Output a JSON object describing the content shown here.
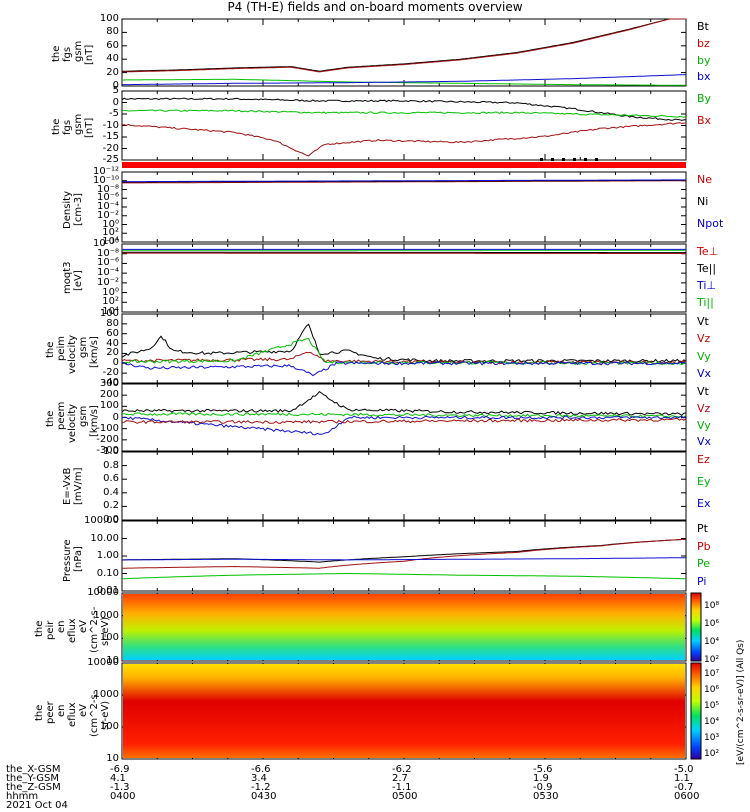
{
  "title": "P4 (TH-E) fields and on-board moments overview",
  "colors": {
    "black": "#000000",
    "red": "#a01010",
    "green": "#00c000",
    "blue": "#1010d0",
    "bar_red": "#ff0000",
    "grid": "#000000"
  },
  "chart_data": [
    {
      "id": "fgs_gsm_total",
      "type": "line",
      "ylabel": [
        "the",
        "fgs",
        "gsm",
        "[nT]"
      ],
      "ylim": [
        0,
        100
      ],
      "yticks": [
        "0",
        "20",
        "40",
        "60",
        "80",
        "100"
      ],
      "legend": [
        {
          "name": "Bt",
          "color": "#000000"
        },
        {
          "name": "bz",
          "color": "#cc0000"
        },
        {
          "name": "by",
          "color": "#00b000"
        },
        {
          "name": "bx",
          "color": "#0000cc"
        }
      ],
      "series": [
        {
          "name": "Bt",
          "color": "#000000",
          "points": [
            [
              0,
              22
            ],
            [
              0.1,
              24
            ],
            [
              0.2,
              27
            ],
            [
              0.3,
              29
            ],
            [
              0.35,
              22
            ],
            [
              0.4,
              28
            ],
            [
              0.5,
              33
            ],
            [
              0.6,
              40
            ],
            [
              0.7,
              50
            ],
            [
              0.8,
              65
            ],
            [
              0.9,
              85
            ],
            [
              0.97,
              100
            ]
          ]
        },
        {
          "name": "bz",
          "color": "#a01010",
          "points": [
            [
              0,
              21
            ],
            [
              0.1,
              23
            ],
            [
              0.2,
              26
            ],
            [
              0.3,
              28
            ],
            [
              0.35,
              21
            ],
            [
              0.4,
              27
            ],
            [
              0.5,
              32
            ],
            [
              0.6,
              39
            ],
            [
              0.7,
              49
            ],
            [
              0.8,
              64
            ],
            [
              0.9,
              84
            ],
            [
              0.97,
              100
            ]
          ]
        },
        {
          "name": "by",
          "color": "#00c000",
          "points": [
            [
              0,
              9
            ],
            [
              0.2,
              10
            ],
            [
              0.4,
              6
            ],
            [
              0.6,
              4
            ],
            [
              0.8,
              2
            ],
            [
              1,
              1
            ]
          ]
        },
        {
          "name": "bx",
          "color": "#1010d0",
          "points": [
            [
              0,
              2
            ],
            [
              0.2,
              4
            ],
            [
              0.4,
              5
            ],
            [
              0.6,
              7
            ],
            [
              0.8,
              11
            ],
            [
              1,
              17
            ]
          ]
        }
      ]
    },
    {
      "id": "fgs_gsm_delta",
      "type": "line",
      "ylabel": [
        "the",
        "fgs",
        "gsm",
        "[nT]"
      ],
      "ylim": [
        -28,
        7
      ],
      "yticks": [
        "-25",
        "-20",
        "-15",
        "-10",
        "-5",
        "0",
        "5"
      ],
      "legend": [
        {
          "name": "By",
          "color": "#00b000"
        },
        {
          "name": "Bx",
          "color": "#cc0000"
        }
      ],
      "series": [
        {
          "name": "bt",
          "color": "#000000",
          "points": [
            [
              0,
              3
            ],
            [
              0.2,
              3
            ],
            [
              0.35,
              2
            ],
            [
              0.5,
              2
            ],
            [
              0.7,
              1
            ],
            [
              0.8,
              -2
            ],
            [
              0.9,
              -6
            ],
            [
              1,
              -8
            ]
          ]
        },
        {
          "name": "By",
          "color": "#00c000",
          "points": [
            [
              0,
              -3
            ],
            [
              0.2,
              -3
            ],
            [
              0.35,
              -4
            ],
            [
              0.5,
              -4
            ],
            [
              0.7,
              -4
            ],
            [
              0.85,
              -5
            ],
            [
              1,
              -6
            ]
          ]
        },
        {
          "name": "Bx",
          "color": "#a01010",
          "points": [
            [
              0,
              -10
            ],
            [
              0.1,
              -12
            ],
            [
              0.2,
              -14
            ],
            [
              0.27,
              -18
            ],
            [
              0.33,
              -26
            ],
            [
              0.36,
              -20
            ],
            [
              0.45,
              -18
            ],
            [
              0.6,
              -19
            ],
            [
              0.75,
              -16
            ],
            [
              0.85,
              -12
            ],
            [
              1,
              -9
            ]
          ]
        }
      ]
    },
    {
      "id": "density",
      "type": "line",
      "ylabel": [
        "Density",
        "[cm-3]"
      ],
      "ylim": [
        -13,
        3
      ],
      "log": true,
      "yticks": [
        "10⁴",
        "10²",
        "10⁰",
        "10⁻²",
        "10⁻⁴",
        "10⁻⁶",
        "10⁻⁸",
        "10⁻¹⁰",
        "10⁻¹²"
      ],
      "legend": [
        {
          "name": "Ne",
          "color": "#cc0000"
        },
        {
          "name": "Ni",
          "color": "#000000"
        },
        {
          "name": "Npot",
          "color": "#0000cc"
        }
      ],
      "series": [
        {
          "name": "Ne",
          "color": "#a01010",
          "points": [
            [
              0,
              0.5
            ],
            [
              1,
              1.0
            ]
          ]
        },
        {
          "name": "Ni",
          "color": "#000000",
          "points": [
            [
              0,
              0.7
            ],
            [
              1,
              1.1
            ]
          ]
        },
        {
          "name": "Npot",
          "color": "#1010d0",
          "points": [
            [
              0,
              0.8
            ],
            [
              1,
              1.2
            ]
          ]
        }
      ]
    },
    {
      "id": "temperature",
      "type": "line",
      "ylabel": [
        "moqt3",
        "[eV]"
      ],
      "ylim": [
        -10,
        5
      ],
      "log": true,
      "yticks": [
        "10⁴",
        "10²",
        "10⁰",
        "10⁻²",
        "10⁻⁴",
        "10⁻⁶",
        "10⁻⁸",
        "10⁻¹⁰"
      ],
      "legend": [
        {
          "name": "Te⊥",
          "color": "#cc0000"
        },
        {
          "name": "Te||",
          "color": "#000000"
        },
        {
          "name": "Ti⊥",
          "color": "#0000cc"
        },
        {
          "name": "Ti||",
          "color": "#00b000"
        }
      ],
      "series": [
        {
          "name": "Te||",
          "color": "#000000",
          "points": [
            [
              0,
              3.2
            ],
            [
              1,
              3.1
            ]
          ]
        },
        {
          "name": "Te⊥",
          "color": "#a01010",
          "points": [
            [
              0,
              3.0
            ],
            [
              1,
              2.9
            ]
          ]
        },
        {
          "name": "Ti||",
          "color": "#00c000",
          "points": [
            [
              0,
              3.6
            ],
            [
              1,
              3.6
            ]
          ]
        },
        {
          "name": "Ti⊥",
          "color": "#1010d0",
          "points": [
            [
              0,
              3.8
            ],
            [
              1,
              3.8
            ]
          ]
        }
      ]
    },
    {
      "id": "peim_velocity",
      "type": "line",
      "ylabel": [
        "the",
        "peim",
        "velocity",
        "gsm",
        "[km/s]"
      ],
      "ylim": [
        -40,
        100
      ],
      "yticks": [
        "-40",
        "-20",
        "0",
        "20",
        "40",
        "60",
        "80",
        "100"
      ],
      "legend": [
        {
          "name": "Vt",
          "color": "#000000"
        },
        {
          "name": "Vz",
          "color": "#cc0000"
        },
        {
          "name": "Vy",
          "color": "#00b000"
        },
        {
          "name": "Vx",
          "color": "#0000cc"
        }
      ],
      "series": [
        {
          "name": "Vt",
          "color": "#000000",
          "points": [
            [
              0,
              15
            ],
            [
              0.05,
              30
            ],
            [
              0.07,
              55
            ],
            [
              0.09,
              25
            ],
            [
              0.15,
              20
            ],
            [
              0.3,
              25
            ],
            [
              0.33,
              80
            ],
            [
              0.35,
              20
            ],
            [
              0.4,
              25
            ],
            [
              0.45,
              10
            ],
            [
              0.55,
              5
            ],
            [
              0.7,
              5
            ],
            [
              1,
              5
            ]
          ]
        },
        {
          "name": "Vz",
          "color": "#a01010",
          "points": [
            [
              0,
              5
            ],
            [
              0.3,
              8
            ],
            [
              0.33,
              25
            ],
            [
              0.36,
              5
            ],
            [
              0.6,
              2
            ],
            [
              1,
              2
            ]
          ]
        },
        {
          "name": "Vy",
          "color": "#00c000",
          "points": [
            [
              0,
              3
            ],
            [
              0.2,
              5
            ],
            [
              0.33,
              50
            ],
            [
              0.36,
              2
            ],
            [
              1,
              0
            ]
          ]
        },
        {
          "name": "Vx",
          "color": "#1010d0",
          "points": [
            [
              0,
              0
            ],
            [
              0.05,
              -10
            ],
            [
              0.3,
              -5
            ],
            [
              0.34,
              -25
            ],
            [
              0.38,
              0
            ],
            [
              1,
              0
            ]
          ]
        }
      ]
    },
    {
      "id": "peem_velocity",
      "type": "line",
      "ylabel": [
        "the",
        "peem",
        "velocity",
        "gsm",
        "[km/s]"
      ],
      "ylim": [
        -300,
        300
      ],
      "yticks": [
        "-300",
        "-200",
        "-100",
        "0",
        "100",
        "200",
        "300"
      ],
      "legend": [
        {
          "name": "Vt",
          "color": "#000000"
        },
        {
          "name": "Vz",
          "color": "#cc0000"
        },
        {
          "name": "Vy",
          "color": "#00b000"
        },
        {
          "name": "Vx",
          "color": "#0000cc"
        }
      ],
      "series": [
        {
          "name": "Vt",
          "color": "#000000",
          "points": [
            [
              0,
              60
            ],
            [
              0.3,
              60
            ],
            [
              0.35,
              220
            ],
            [
              0.4,
              70
            ],
            [
              0.6,
              50
            ],
            [
              0.8,
              40
            ],
            [
              1,
              30
            ]
          ]
        },
        {
          "name": "Vy",
          "color": "#00c000",
          "points": [
            [
              0,
              30
            ],
            [
              0.3,
              30
            ],
            [
              0.6,
              20
            ],
            [
              1,
              10
            ]
          ]
        },
        {
          "name": "Vx",
          "color": "#1010d0",
          "points": [
            [
              0,
              0
            ],
            [
              0.36,
              -150
            ],
            [
              0.4,
              0
            ],
            [
              1,
              0
            ]
          ]
        },
        {
          "name": "Vz",
          "color": "#a01010",
          "points": [
            [
              0,
              -40
            ],
            [
              0.3,
              -40
            ],
            [
              0.6,
              -30
            ],
            [
              1,
              -20
            ]
          ]
        }
      ]
    },
    {
      "id": "efield",
      "type": "line",
      "ylabel": [
        "E=-VxB",
        "[mV/m]"
      ],
      "ylim": [
        0,
        1
      ],
      "yticks": [
        "0.0",
        "0.2",
        "0.4",
        "0.6",
        "0.8",
        "1.0"
      ],
      "legend": [
        {
          "name": "Ez",
          "color": "#cc0000"
        },
        {
          "name": "Ey",
          "color": "#00b000"
        },
        {
          "name": "Ex",
          "color": "#0000cc"
        }
      ],
      "series": []
    },
    {
      "id": "pressure",
      "type": "line",
      "ylabel": [
        "Pressure",
        "[nPa]"
      ],
      "ylim": [
        0.01,
        100
      ],
      "log": true,
      "yticks": [
        "0.01",
        "0.10",
        "1.00",
        "10.00",
        "100.00"
      ],
      "legend": [
        {
          "name": "Pt",
          "color": "#000000"
        },
        {
          "name": "Pb",
          "color": "#cc0000"
        },
        {
          "name": "Pe",
          "color": "#00b000"
        },
        {
          "name": "Pi",
          "color": "#0000cc"
        }
      ],
      "series": [
        {
          "name": "Pt",
          "color": "#000000",
          "points": [
            [
              0,
              0.6
            ],
            [
              0.2,
              0.7
            ],
            [
              0.35,
              0.45
            ],
            [
              0.5,
              0.9
            ],
            [
              0.7,
              1.8
            ],
            [
              0.85,
              4
            ],
            [
              1,
              9
            ]
          ]
        },
        {
          "name": "Pb",
          "color": "#a01010",
          "points": [
            [
              0,
              0.2
            ],
            [
              0.2,
              0.25
            ],
            [
              0.35,
              0.2
            ],
            [
              0.5,
              0.5
            ],
            [
              0.7,
              1.6
            ],
            [
              0.85,
              3.8
            ],
            [
              1,
              9
            ]
          ]
        },
        {
          "name": "Pe",
          "color": "#00c000",
          "points": [
            [
              0,
              0.05
            ],
            [
              0.2,
              0.08
            ],
            [
              0.4,
              0.1
            ],
            [
              0.6,
              0.08
            ],
            [
              0.8,
              0.07
            ],
            [
              1,
              0.05
            ]
          ]
        },
        {
          "name": "Pi",
          "color": "#1010d0",
          "points": [
            [
              0,
              0.6
            ],
            [
              0.2,
              0.65
            ],
            [
              0.4,
              0.6
            ],
            [
              0.6,
              0.65
            ],
            [
              0.8,
              0.7
            ],
            [
              1,
              0.8
            ]
          ]
        }
      ]
    },
    {
      "id": "peir_eflux",
      "type": "heatmap",
      "ylabel": [
        "the",
        "peir",
        "en",
        "eflux",
        "eV",
        "(cm^2-s-",
        "sr-eV)"
      ],
      "yticks": [
        "10",
        "100",
        "1000",
        "10000"
      ]
    },
    {
      "id": "peer_eflux",
      "type": "heatmap",
      "ylabel": [
        "the",
        "peer",
        "en",
        "eflux",
        "eV",
        "(cm^2-s-",
        "sr-eV)"
      ],
      "yticks": [
        "10",
        "100",
        "1000",
        "10000"
      ]
    }
  ],
  "colorbar": {
    "label": "[eV/(cm^2-s-sr-eV)] (All Qs)",
    "top_ticks": [
      "10⁸",
      "10⁶",
      "10⁴",
      "10²"
    ],
    "bottom_ticks": [
      "10⁷",
      "10⁶",
      "10⁵",
      "10⁴",
      "10³",
      "10²"
    ]
  },
  "x_axis": {
    "orbit_labels": [
      "the_X-GSM",
      "the_Y-GSM",
      "the_Z-GSM",
      "hhmm",
      "2021 Oct 04"
    ],
    "ticks": [
      {
        "x_gsm": "-6.9",
        "y_gsm": "4.1",
        "z_gsm": "-1.3",
        "hhmm": "0400"
      },
      {
        "x_gsm": "-6.6",
        "y_gsm": "3.4",
        "z_gsm": "-1.2",
        "hhmm": "0430"
      },
      {
        "x_gsm": "-6.2",
        "y_gsm": "2.7",
        "z_gsm": "-1.1",
        "hhmm": "0500"
      },
      {
        "x_gsm": "-5.6",
        "y_gsm": "1.9",
        "z_gsm": "-0.9",
        "hhmm": "0530"
      },
      {
        "x_gsm": "-5.0",
        "y_gsm": "1.1",
        "z_gsm": "-0.7",
        "hhmm": "0600"
      }
    ]
  }
}
